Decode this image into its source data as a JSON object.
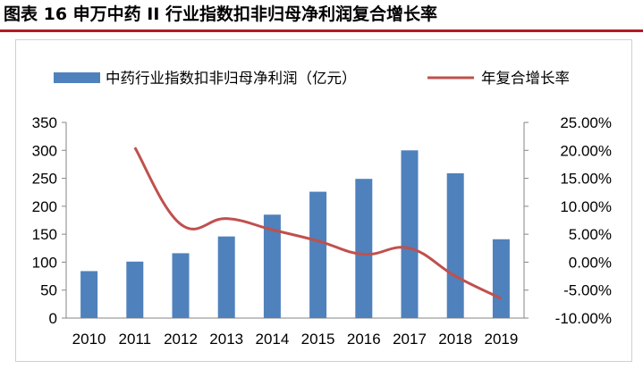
{
  "title": "图表 16 申万中药 II 行业指数扣非归母净利润复合增长率",
  "colors": {
    "bar": "#4f81bd",
    "line": "#c0504d",
    "title_rule": "#b01c22"
  },
  "chart_data": {
    "type": "bar",
    "categories": [
      "2010",
      "2011",
      "2012",
      "2013",
      "2014",
      "2015",
      "2016",
      "2017",
      "2018",
      "2019"
    ],
    "series": [
      {
        "name": "中药行业指数扣非归母净利润（亿元）",
        "type": "bar",
        "axis": "left",
        "values": [
          84,
          101,
          116,
          146,
          185,
          226,
          249,
          300,
          259,
          141
        ]
      },
      {
        "name": "年复合增长率",
        "type": "line",
        "axis": "right",
        "values": [
          null,
          20.5,
          6.8,
          7.8,
          5.8,
          3.8,
          1.4,
          2.5,
          -2.5,
          -6.5
        ]
      }
    ],
    "ylim_left": [
      0,
      350
    ],
    "yticks_left": [
      "0",
      "50",
      "100",
      "150",
      "200",
      "250",
      "300",
      "350"
    ],
    "ylim_right": [
      -10,
      25
    ],
    "yticks_right": [
      "-10.00%",
      "-5.00%",
      "0.00%",
      "5.00%",
      "10.00%",
      "15.00%",
      "20.00%",
      "25.00%"
    ],
    "legend_position": "top",
    "grid": false
  }
}
